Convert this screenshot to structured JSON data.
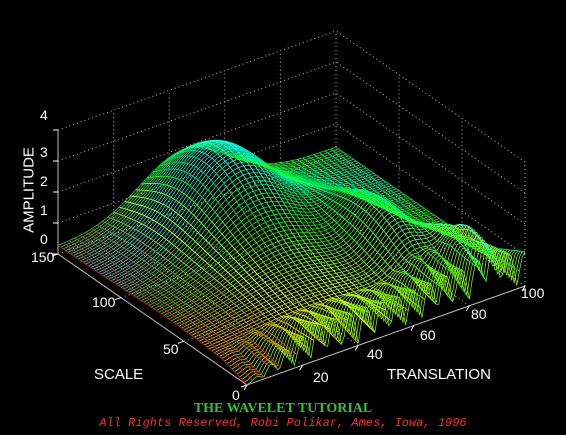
{
  "chart_data": {
    "type": "surface",
    "style": "3d-mesh-rainbow",
    "xlabel": "TRANSLATION",
    "ylabel": "SCALE",
    "zlabel": "AMPLITUDE",
    "xlim": [
      0,
      100
    ],
    "ylim": [
      0,
      150
    ],
    "zlim": [
      0,
      4
    ],
    "xticks": [
      "20",
      "40",
      "60",
      "80",
      "100"
    ],
    "yticks": [
      "0",
      "50",
      "100",
      "150"
    ],
    "zticks": [
      "0",
      "1",
      "2",
      "3",
      "4"
    ],
    "grid": true,
    "background": "#000000",
    "surface_features": {
      "scale_range_oscillating": [
        0,
        20
      ],
      "peak_amplitude": 4,
      "peak_translation": 45,
      "peak_scale": 120,
      "low_scale_ridge_amplitude": 1.1
    }
  },
  "footer": {
    "title": "THE WAVELET TUTORIAL",
    "credit": "All Rights Reserved, Robi Polikar, Ames, Iowa, 1996"
  },
  "colors": {
    "title": "#2ec52e",
    "credit": "#ff2a2a",
    "axis_text": "#ffffff",
    "grid": "#bbbbbb"
  }
}
